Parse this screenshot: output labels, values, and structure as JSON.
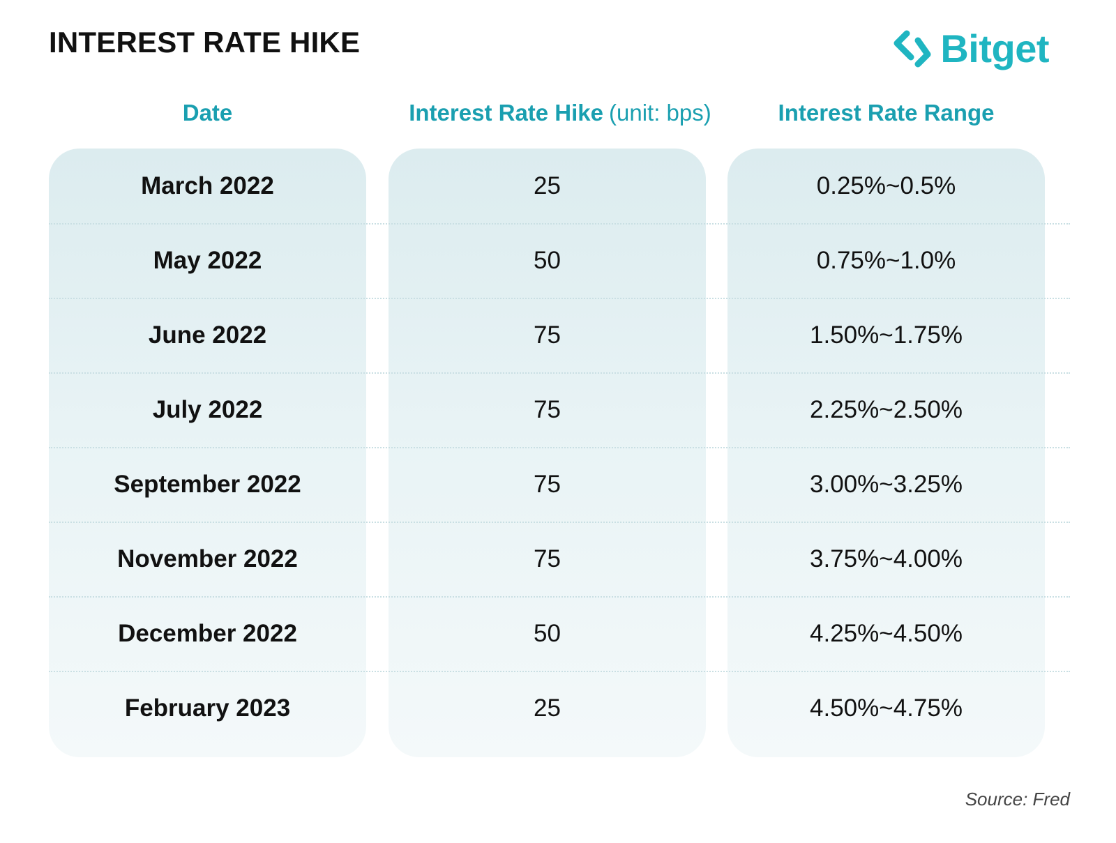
{
  "title": "INTEREST RATE HIKE",
  "brand": {
    "name": "Bitget",
    "icon": "bitget-arrows-logo-icon",
    "color": "#1fb5c1"
  },
  "colors": {
    "header": "#1a9fb0",
    "panel_top": "#dcecef",
    "panel_bottom": "#f4f9fa"
  },
  "chart_data": {
    "type": "table",
    "title": "INTEREST RATE HIKE",
    "columns": [
      {
        "label": "Date",
        "unit": ""
      },
      {
        "label": "Interest Rate Hike",
        "unit": "(unit: bps)"
      },
      {
        "label": "Interest Rate Range",
        "unit": ""
      }
    ],
    "rows": [
      {
        "date": "March 2022",
        "hike": 25,
        "range": "0.25%~0.5%"
      },
      {
        "date": "May 2022",
        "hike": 50,
        "range": "0.75%~1.0%"
      },
      {
        "date": "June 2022",
        "hike": 75,
        "range": "1.50%~1.75%"
      },
      {
        "date": "July 2022",
        "hike": 75,
        "range": "2.25%~2.50%"
      },
      {
        "date": "September 2022",
        "hike": 75,
        "range": "3.00%~3.25%"
      },
      {
        "date": "November 2022",
        "hike": 75,
        "range": "3.75%~4.00%"
      },
      {
        "date": "December 2022",
        "hike": 50,
        "range": "4.25%~4.50%"
      },
      {
        "date": "February 2023",
        "hike": 25,
        "range": "4.50%~4.75%"
      }
    ],
    "source": "Source: Fred"
  }
}
